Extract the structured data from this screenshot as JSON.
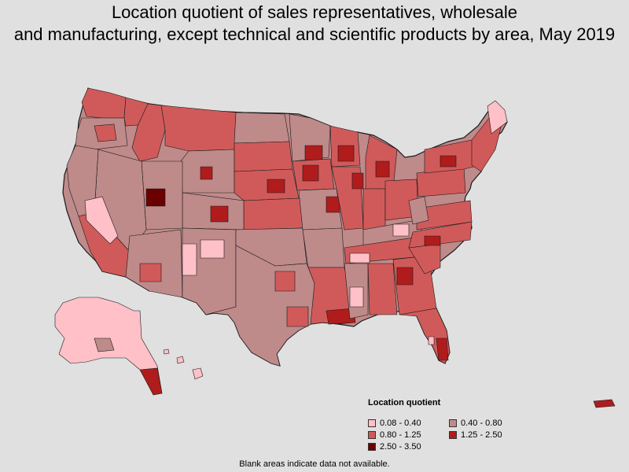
{
  "title": {
    "line1": "Location quotient of sales representatives, wholesale",
    "line2": "and manufacturing, except technical and scientific products by area, May 2019"
  },
  "legend": {
    "title": "Location quotient",
    "items": [
      {
        "label": "0.08 - 0.40",
        "color": "#ffc0c8"
      },
      {
        "label": "0.40 - 0.80",
        "color": "#bf8a8a"
      },
      {
        "label": "0.80 - 1.25",
        "color": "#d05a5a"
      },
      {
        "label": "1.25 - 2.50",
        "color": "#b01c1c"
      },
      {
        "label": "2.50 - 3.50",
        "color": "#6a0000"
      }
    ]
  },
  "footnote": "Blank areas indicate data not available.",
  "colors": {
    "background": "#e0e0e0",
    "border": "#1a1a1a"
  }
}
